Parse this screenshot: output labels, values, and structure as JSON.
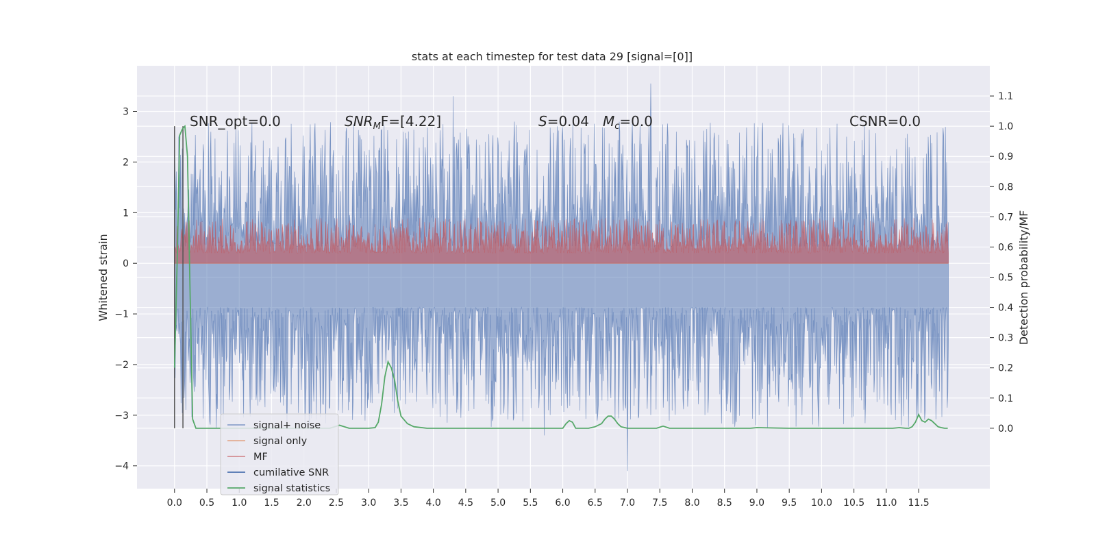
{
  "chart_data": {
    "type": "line",
    "title": "stats at each timestep for test data 29 [signal=[0]]",
    "xlabel": "",
    "ylabel": "Whitened strain",
    "ylabel_right": "Detection probability/MF",
    "xlim": [
      -0.58,
      12.6
    ],
    "ylim": [
      -4.45,
      3.9
    ],
    "ylim_right": [
      -0.2,
      1.2
    ],
    "xticks": [
      0.0,
      0.5,
      1.0,
      1.5,
      2.0,
      2.5,
      3.0,
      3.5,
      4.0,
      4.5,
      5.0,
      5.5,
      6.0,
      6.5,
      7.0,
      7.5,
      8.0,
      8.5,
      9.0,
      9.5,
      10.0,
      10.5,
      11.0,
      11.5
    ],
    "xtick_labels": [
      "0.0",
      "0.5",
      "1.0",
      "1.5",
      "2.0",
      "2.5",
      "3.0",
      "3.5",
      "4.0",
      "4.5",
      "5.0",
      "5.5",
      "6.0",
      "6.5",
      "7.0",
      "7.5",
      "8.0",
      "8.5",
      "9.0",
      "9.5",
      "10.0",
      "10.5",
      "11.0",
      "11.5"
    ],
    "yticks": [
      -4,
      -3,
      -2,
      -1,
      0,
      1,
      2,
      3
    ],
    "ytick_labels": [
      "−4",
      "−3",
      "−2",
      "−1",
      "0",
      "1",
      "2",
      "3"
    ],
    "yticks_right": [
      0.0,
      0.1,
      0.2,
      0.3,
      0.4,
      0.5,
      0.6,
      0.7,
      0.8,
      0.9,
      1.0,
      1.1
    ],
    "ytick_labels_right": [
      "0.0",
      "0.1",
      "0.2",
      "0.3",
      "0.4",
      "0.5",
      "0.6",
      "0.7",
      "0.8",
      "0.9",
      "1.0",
      "1.1"
    ],
    "grid": true,
    "legend_position": "lower-left",
    "annotations": {
      "snr_opt": "SNR_opt=0.0",
      "snr_mf_sym": "SNR",
      "snr_mf_sub": "M",
      "snr_mf_rest": "F=[4.22]",
      "s_sym": "S",
      "s_rest": "=0.04",
      "mc_sym": "M",
      "mc_sub": "c",
      "mc_rest": "=0.0",
      "csnr": "CSNR=0.0"
    },
    "series": [
      {
        "name": "signal+ noise",
        "color": "#4c72b0",
        "kind": "noise",
        "x_range": [
          0.0,
          11.96
        ],
        "center": -0.27,
        "typical_upper": 1.3,
        "typical_lower": -1.75,
        "max": 3.55,
        "min": -4.1
      },
      {
        "name": "signal only",
        "color": "#dd8452",
        "kind": "line",
        "x": [
          0.0,
          11.96
        ],
        "y": [
          0.0,
          0.0
        ]
      },
      {
        "name": "MF",
        "color": "#c44e52",
        "kind": "band",
        "x_range": [
          0.0,
          11.96
        ],
        "lower": 0.0,
        "typical_upper": 0.6,
        "max": 0.9
      },
      {
        "name": "cumilative SNR",
        "color": "#4c72b0",
        "kind": "line",
        "x": [],
        "y": []
      },
      {
        "name": "signal statistics",
        "color": "#55a868",
        "axis": "right",
        "x": [
          0.0,
          0.04,
          0.08,
          0.12,
          0.16,
          0.2,
          0.24,
          0.28,
          0.33,
          0.4,
          0.6,
          1.0,
          1.5,
          2.0,
          2.4,
          2.55,
          2.7,
          3.0,
          3.1,
          3.15,
          3.2,
          3.25,
          3.3,
          3.35,
          3.4,
          3.45,
          3.5,
          3.6,
          3.7,
          3.9,
          4.2,
          5.0,
          5.5,
          5.9,
          6.0,
          6.05,
          6.1,
          6.15,
          6.2,
          6.4,
          6.5,
          6.6,
          6.65,
          6.7,
          6.75,
          6.8,
          6.85,
          6.9,
          7.0,
          7.3,
          7.45,
          7.55,
          7.65,
          7.8,
          8.0,
          8.5,
          8.9,
          9.0,
          9.5,
          10.0,
          10.5,
          11.0,
          11.1,
          11.2,
          11.3,
          11.35,
          11.4,
          11.45,
          11.5,
          11.55,
          11.6,
          11.65,
          11.7,
          11.75,
          11.8,
          11.85,
          11.9,
          11.95
        ],
        "y": [
          0.2,
          0.55,
          0.97,
          0.99,
          1.0,
          0.9,
          0.45,
          0.03,
          0.0,
          0.0,
          0.0,
          0.0,
          0.0,
          0.0,
          0.0,
          0.01,
          0.0,
          0.0,
          0.002,
          0.02,
          0.08,
          0.17,
          0.22,
          0.2,
          0.16,
          0.09,
          0.04,
          0.015,
          0.005,
          0.0,
          0.0,
          0.0,
          0.0,
          0.0,
          0.0,
          0.015,
          0.025,
          0.02,
          0.0,
          0.0,
          0.005,
          0.015,
          0.03,
          0.04,
          0.04,
          0.03,
          0.015,
          0.005,
          0.0,
          0.0,
          0.0,
          0.007,
          0.0,
          0.0,
          0.0,
          0.0,
          0.0,
          0.002,
          0.0,
          0.0,
          0.0,
          0.0,
          0.0,
          0.002,
          0.0,
          0.0,
          0.005,
          0.02,
          0.045,
          0.025,
          0.02,
          0.03,
          0.025,
          0.015,
          0.005,
          0.002,
          0.0,
          0.0
        ]
      }
    ],
    "vertical_lines": [
      0.0,
      0.13
    ]
  }
}
